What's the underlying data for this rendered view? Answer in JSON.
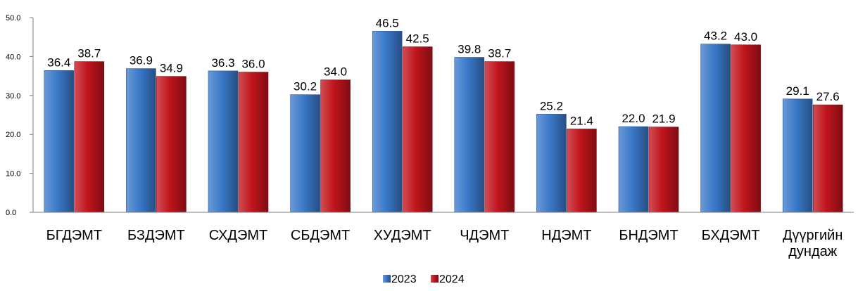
{
  "chart_data": {
    "type": "bar",
    "categories": [
      [
        "БГДЭМТ"
      ],
      [
        "БЗДЭМТ"
      ],
      [
        "СХДЭМТ"
      ],
      [
        "СБДЭМТ"
      ],
      [
        "ХУДЭМТ"
      ],
      [
        "ЧДЭМТ"
      ],
      [
        "НДЭМТ"
      ],
      [
        "БНДЭМТ"
      ],
      [
        "БХДЭМТ"
      ],
      [
        "Дүүргийн",
        "дундаж"
      ]
    ],
    "series": [
      {
        "name": "2023",
        "color": "#3a78c9",
        "values": [
          36.4,
          36.9,
          36.3,
          30.2,
          46.5,
          39.8,
          25.2,
          22.0,
          43.2,
          29.1
        ],
        "labels": [
          "36.4",
          "36.9",
          "36.3",
          "30.2",
          "46.5",
          "39.8",
          "25.2",
          "22.0",
          "43.2",
          "29.1"
        ]
      },
      {
        "name": "2024",
        "color": "#c0141c",
        "values": [
          38.7,
          34.9,
          36.0,
          34.0,
          42.5,
          38.7,
          21.4,
          21.9,
          43.0,
          27.6
        ],
        "labels": [
          "38.7",
          "34.9",
          "36.0",
          "34.0",
          "42.5",
          "38.7",
          "21.4",
          "21.9",
          "43.0",
          "27.6"
        ]
      }
    ],
    "ylim": [
      0,
      50
    ],
    "yticks": [
      "0.0",
      "10.0",
      "20.0",
      "30.0",
      "40.0",
      "50.0"
    ],
    "ytick_values": [
      0,
      10,
      20,
      30,
      40,
      50
    ],
    "title": "",
    "xlabel": "",
    "ylabel": "",
    "grid": false,
    "legend_position": "bottom-center"
  }
}
